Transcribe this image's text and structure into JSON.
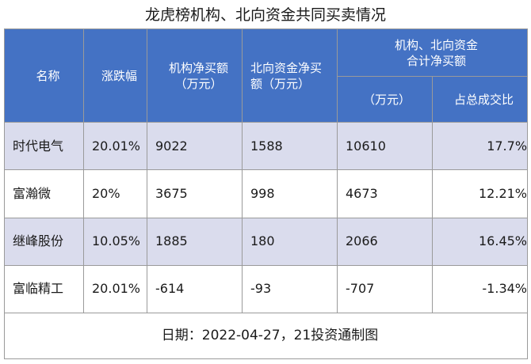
{
  "title": "龙虎榜机构、北向资金共同买卖情况",
  "header": {
    "name": "名称",
    "change": "涨跌幅",
    "inst_line1": "机构净买额",
    "inst_line2": "（万元）",
    "north_line1": "北向资金净买",
    "north_line2": "额（万元）",
    "combined_line1": "机构、北向资金",
    "combined_line2": "合计净买额",
    "combined_unit": "（万元）",
    "combined_ratio": "占总成交比"
  },
  "rows": [
    {
      "name": "时代电气",
      "change": "20.01%",
      "inst": "9022",
      "north": "1588",
      "total": "10610",
      "ratio": "17.7%"
    },
    {
      "name": "富瀚微",
      "change": "20%",
      "inst": "3675",
      "north": "998",
      "total": "4673",
      "ratio": "12.21%"
    },
    {
      "name": "继峰股份",
      "change": "10.05%",
      "inst": "1885",
      "north": "180",
      "total": "2066",
      "ratio": "16.45%"
    },
    {
      "name": "富临精工",
      "change": "20.01%",
      "inst": "-614",
      "north": "-93",
      "total": "-707",
      "ratio": "-1.34%"
    }
  ],
  "footer": "日期：2022-04-27，21投资通制图",
  "colors": {
    "header_bg": "#4472c4",
    "row_shade": "#dadced"
  }
}
